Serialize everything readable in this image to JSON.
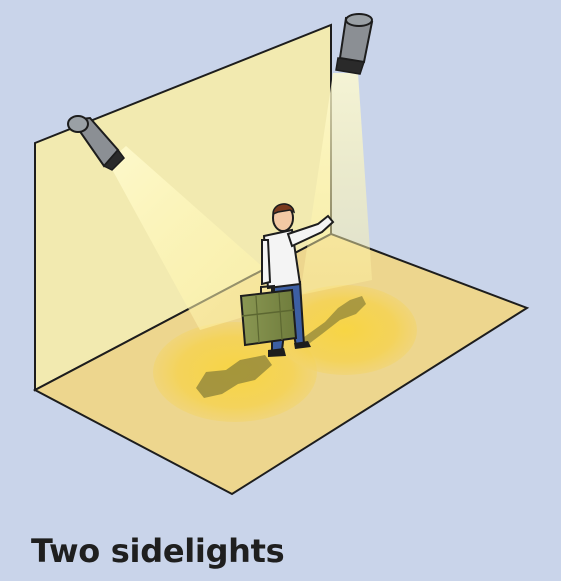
{
  "caption": "Two sidelights",
  "colors": {
    "background": "#c9d4ea",
    "wall": "#f2eab0",
    "floor": "#edd68e",
    "light_beam": "#fff6a8",
    "light_pool": "#f6d24a",
    "spotlight_body": "#8b8f94",
    "suitcase": "#7f8c4a",
    "shirt": "#f4f4f4",
    "trousers": "#3d5fa3",
    "hair": "#7a3a1e",
    "outline": "#1d1d1d"
  },
  "icons": [
    "spotlight-left",
    "spotlight-right",
    "person-with-suitcase"
  ]
}
